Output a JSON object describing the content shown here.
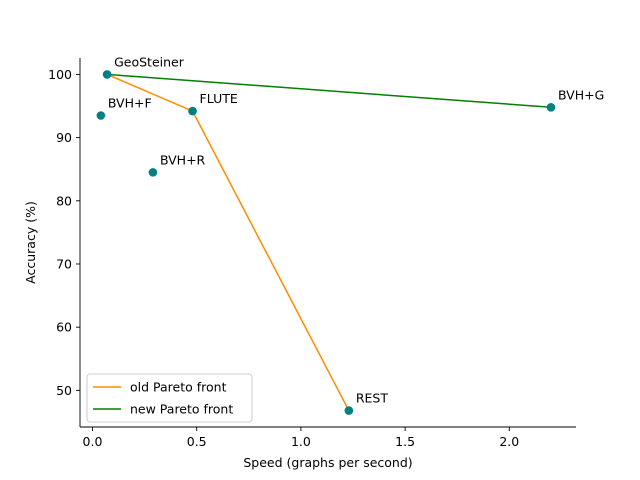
{
  "chart_data": {
    "type": "scatter",
    "xlabel": "Speed (graphs per second)",
    "ylabel": "Accuracy (%)",
    "xlim": [
      -0.06,
      2.32
    ],
    "ylim": [
      44.2,
      102.6
    ],
    "xticks": [
      0.0,
      0.5,
      1.0,
      1.5,
      2.0
    ],
    "xtick_labels": [
      "0.0",
      "0.5",
      "1.0",
      "1.5",
      "2.0"
    ],
    "yticks": [
      50,
      60,
      70,
      80,
      90,
      100
    ],
    "ytick_labels": [
      "50",
      "60",
      "70",
      "80",
      "90",
      "100"
    ],
    "grid": false,
    "legend_position": "lower-left",
    "point_color": "#008080",
    "points": [
      {
        "label": "GeoSteiner",
        "x": 0.07,
        "y": 100.0
      },
      {
        "label": "BVH+F",
        "x": 0.04,
        "y": 93.5
      },
      {
        "label": "FLUTE",
        "x": 0.48,
        "y": 94.2
      },
      {
        "label": "BVH+R",
        "x": 0.29,
        "y": 84.5
      },
      {
        "label": "REST",
        "x": 1.23,
        "y": 46.8
      },
      {
        "label": "BVH+G",
        "x": 2.2,
        "y": 94.8
      }
    ],
    "series": [
      {
        "name": "old Pareto front",
        "color": "#ff8c00",
        "x": [
          0.07,
          0.48,
          1.23
        ],
        "y": [
          100.0,
          94.2,
          46.8
        ]
      },
      {
        "name": "new Pareto front",
        "color": "#008000",
        "x": [
          0.07,
          2.2
        ],
        "y": [
          100.0,
          94.8
        ]
      }
    ]
  }
}
